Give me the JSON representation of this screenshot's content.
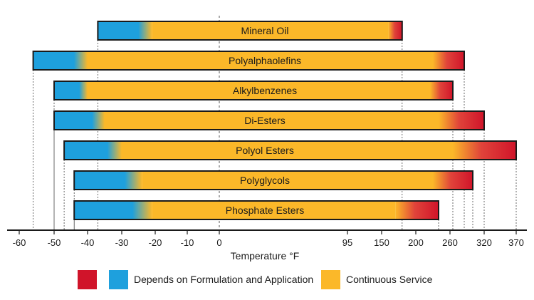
{
  "chart_data": {
    "type": "bar",
    "orientation": "horizontal-range",
    "title": "",
    "xlabel": "Temperature °F",
    "ticks": [
      "-60",
      "-50",
      "-40",
      "-30",
      "-20",
      "-10",
      "0",
      "95",
      "150",
      "200",
      "260",
      "320",
      "370"
    ],
    "categories": [
      "Mineral Oil",
      "Polyalphaolefins",
      "Alkylbenzenes",
      "Di-Esters",
      "Polyol Esters",
      "Polyglycols",
      "Phosphate Esters"
    ],
    "series": [
      {
        "name": "Depends on Formulation and Application (low end)",
        "color": "#1ea0dd",
        "ranges": [
          [
            -37,
            -21
          ],
          [
            -56,
            -40
          ],
          [
            -50,
            -40
          ],
          [
            -50,
            -35
          ],
          [
            -47,
            -30
          ],
          [
            -44,
            -24
          ],
          [
            -44,
            -21
          ]
        ]
      },
      {
        "name": "Continuous Service",
        "color": "#fbb829",
        "ranges": [
          [
            -21,
            160
          ],
          [
            -40,
            230
          ],
          [
            -40,
            225
          ],
          [
            -35,
            240
          ],
          [
            -30,
            265
          ],
          [
            -24,
            230
          ],
          [
            -21,
            170
          ]
        ]
      },
      {
        "name": "Depends on Formulation and Application (high end)",
        "color": "#d0142a",
        "ranges": [
          [
            160,
            180
          ],
          [
            230,
            285
          ],
          [
            225,
            265
          ],
          [
            240,
            320
          ],
          [
            265,
            370
          ],
          [
            230,
            300
          ],
          [
            170,
            240
          ]
        ]
      }
    ],
    "bar_min": [
      -37,
      -56,
      -50,
      -50,
      -47,
      -44,
      -44
    ],
    "bar_max": [
      180,
      285,
      265,
      320,
      370,
      300,
      240
    ],
    "reference_lines": [
      0
    ],
    "legend": {
      "position": "bottom",
      "items": [
        {
          "label": "",
          "color": "#d0142a"
        },
        {
          "label": "Depends on Formulation and Application",
          "color": "#1ea0dd"
        },
        {
          "label": "Continuous Service",
          "color": "#fbb829"
        }
      ]
    }
  }
}
